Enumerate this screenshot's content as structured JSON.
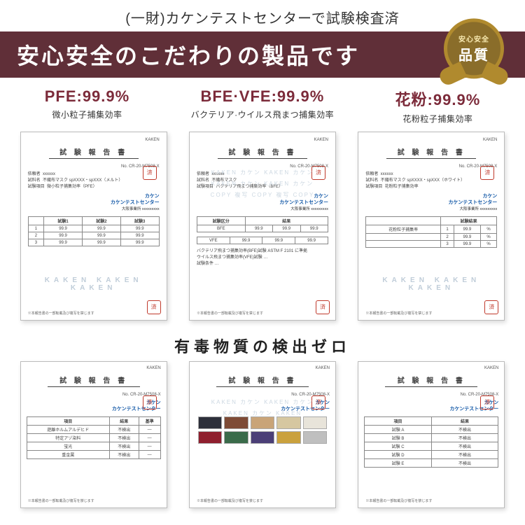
{
  "header": {
    "preline": "(一財)カケンテストセンターで試験検査済",
    "banner": "安心安全のこだわりの製品です",
    "seal_top": "安心安全",
    "seal_main": "品質"
  },
  "stats": [
    {
      "title": "PFE:99.9%",
      "sub": "微小粒子捕集効率"
    },
    {
      "title": "BFE·VFE:99.9%",
      "sub": "バクテリア·ウイルス飛まつ捕集効率"
    },
    {
      "title": "花粉:99.9%",
      "sub": "花粉粒子捕集効率"
    }
  ],
  "doc": {
    "title": "試 験 報 告 書",
    "ref": "No. CR-20-M7508-X",
    "kaken": "KAKEN",
    "center_line1": "カケン",
    "center_line2": "カケンテストセンター",
    "center_sub": "大阪事業所 xxxxxxxxx",
    "watermark": "KAKEN   KAKEN   KAKEN",
    "footer_note": "※本報告書の一部転載及び複写を禁じます",
    "stamp": "済"
  },
  "section2_title": "有毒物質の検出ゼロ",
  "swatch_colors": [
    "#2d2f3a",
    "#7e4b36",
    "#c9a478",
    "#d6c7a0",
    "#e8e4da",
    "#8f1f2e",
    "#3a6b4a",
    "#4b3f77",
    "#caa13d",
    "#bfbfbf"
  ],
  "colors": {
    "accent": "#7c2b3a",
    "banner_bg": "#602f38"
  }
}
